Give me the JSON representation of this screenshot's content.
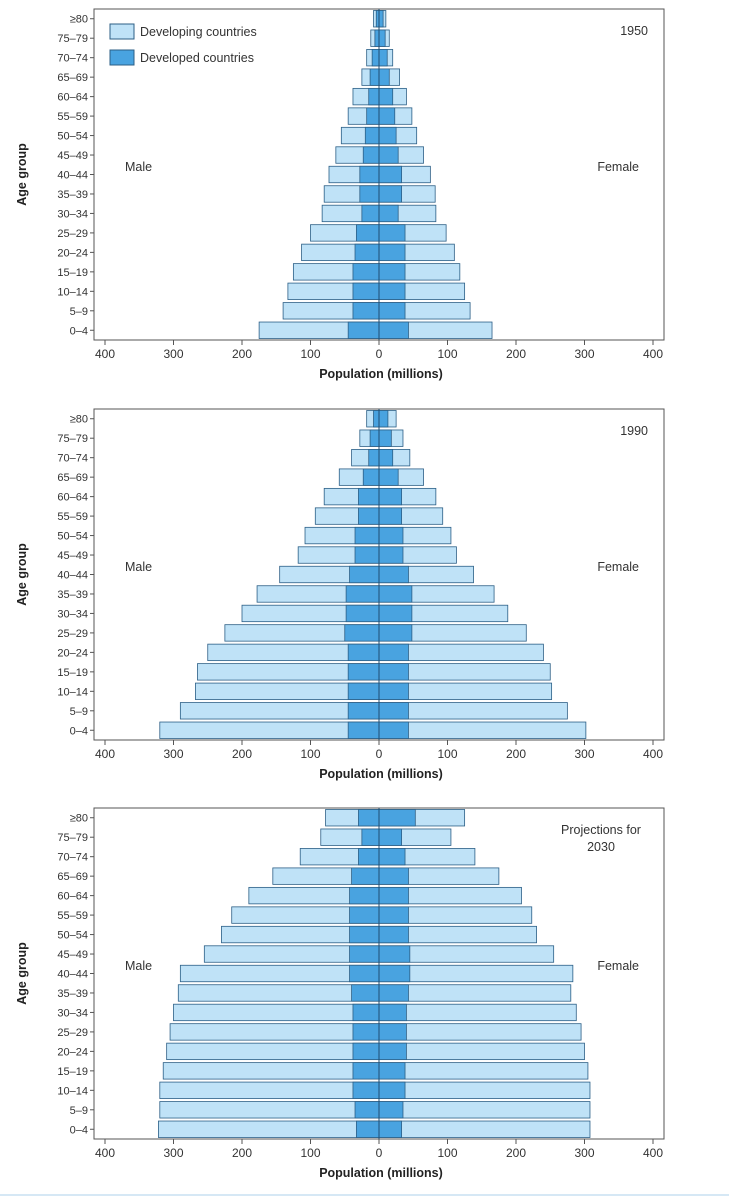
{
  "chart_data": [
    {
      "type": "bar",
      "annotation": "1950",
      "left_label": "Male",
      "right_label": "Female",
      "ylabel": "Age group",
      "xlabel": "Population (millions)",
      "xlim": [
        -400,
        400
      ],
      "x_ticks": [
        -400,
        -300,
        -200,
        -100,
        0,
        100,
        200,
        300,
        400
      ],
      "x_tick_labels": [
        "400",
        "300",
        "200",
        "100",
        "0",
        "100",
        "200",
        "300",
        "400"
      ],
      "categories": [
        "0–4",
        "5–9",
        "10–14",
        "15–19",
        "20–24",
        "25–29",
        "30–34",
        "35–39",
        "40–44",
        "45–49",
        "50–54",
        "55–59",
        "60–64",
        "65–69",
        "70–74",
        "75–79",
        "≥80"
      ],
      "legend": [
        {
          "label": "Developing countries",
          "color": "#bfe2f7"
        },
        {
          "label": "Developed countries",
          "color": "#49a3e0"
        }
      ],
      "series": [
        {
          "name": "Developing countries",
          "side": "Male",
          "values": [
            175,
            140,
            133,
            125,
            113,
            100,
            83,
            80,
            73,
            63,
            55,
            45,
            38,
            25,
            18,
            12,
            8
          ]
        },
        {
          "name": "Developing countries",
          "side": "Female",
          "values": [
            165,
            133,
            125,
            118,
            110,
            98,
            83,
            82,
            75,
            65,
            55,
            48,
            40,
            30,
            20,
            15,
            10
          ]
        },
        {
          "name": "Developed countries",
          "side": "Male",
          "values": [
            45,
            38,
            38,
            38,
            35,
            33,
            25,
            28,
            28,
            23,
            20,
            18,
            15,
            13,
            10,
            6,
            4
          ]
        },
        {
          "name": "Developed countries",
          "side": "Female",
          "values": [
            43,
            38,
            38,
            38,
            38,
            38,
            28,
            33,
            33,
            28,
            25,
            23,
            20,
            15,
            12,
            9,
            6
          ]
        }
      ]
    },
    {
      "type": "bar",
      "annotation": "1990",
      "left_label": "Male",
      "right_label": "Female",
      "ylabel": "Age group",
      "xlabel": "Population (millions)",
      "xlim": [
        -400,
        400
      ],
      "x_ticks": [
        -400,
        -300,
        -200,
        -100,
        0,
        100,
        200,
        300,
        400
      ],
      "x_tick_labels": [
        "400",
        "300",
        "200",
        "100",
        "0",
        "100",
        "200",
        "300",
        "400"
      ],
      "categories": [
        "0–4",
        "5–9",
        "10–14",
        "15–19",
        "20–24",
        "25–29",
        "30–34",
        "35–39",
        "40–44",
        "45–49",
        "50–54",
        "55–59",
        "60–64",
        "65–69",
        "70–74",
        "75–79",
        "≥80"
      ],
      "series": [
        {
          "name": "Developing countries",
          "side": "Male",
          "values": [
            320,
            290,
            268,
            265,
            250,
            225,
            200,
            178,
            145,
            118,
            108,
            93,
            80,
            58,
            40,
            28,
            18
          ]
        },
        {
          "name": "Developing countries",
          "side": "Female",
          "values": [
            302,
            275,
            252,
            250,
            240,
            215,
            188,
            168,
            138,
            113,
            105,
            93,
            83,
            65,
            45,
            35,
            25
          ]
        },
        {
          "name": "Developed countries",
          "side": "Male",
          "values": [
            45,
            45,
            45,
            45,
            45,
            50,
            48,
            48,
            43,
            35,
            35,
            30,
            30,
            23,
            15,
            13,
            8
          ]
        },
        {
          "name": "Developed countries",
          "side": "Female",
          "values": [
            43,
            43,
            43,
            43,
            43,
            48,
            48,
            48,
            43,
            35,
            35,
            33,
            33,
            28,
            20,
            18,
            13
          ]
        }
      ]
    },
    {
      "type": "bar",
      "annotation": "Projections for\n2030",
      "left_label": "Male",
      "right_label": "Female",
      "ylabel": "Age group",
      "xlabel": "Population (millions)",
      "xlim": [
        -400,
        400
      ],
      "x_ticks": [
        -400,
        -300,
        -200,
        -100,
        0,
        100,
        200,
        300,
        400
      ],
      "x_tick_labels": [
        "400",
        "300",
        "200",
        "100",
        "0",
        "100",
        "200",
        "300",
        "400"
      ],
      "categories": [
        "0–4",
        "5–9",
        "10–14",
        "15–19",
        "20–24",
        "25–29",
        "30–34",
        "35–39",
        "40–44",
        "45–49",
        "50–54",
        "55–59",
        "60–64",
        "65–69",
        "70–74",
        "75–79",
        "≥80"
      ],
      "series": [
        {
          "name": "Developing countries",
          "side": "Male",
          "values": [
            322,
            320,
            320,
            315,
            310,
            305,
            300,
            293,
            290,
            255,
            230,
            215,
            190,
            155,
            115,
            85,
            78
          ]
        },
        {
          "name": "Developing countries",
          "side": "Female",
          "values": [
            308,
            308,
            308,
            305,
            300,
            295,
            288,
            280,
            283,
            255,
            230,
            223,
            208,
            175,
            140,
            105,
            125
          ]
        },
        {
          "name": "Developed countries",
          "side": "Male",
          "values": [
            33,
            35,
            38,
            38,
            38,
            38,
            38,
            40,
            43,
            43,
            43,
            43,
            43,
            40,
            30,
            25,
            30
          ]
        },
        {
          "name": "Developed countries",
          "side": "Female",
          "values": [
            33,
            35,
            38,
            38,
            40,
            40,
            40,
            43,
            45,
            45,
            43,
            43,
            43,
            43,
            38,
            33,
            53
          ]
        }
      ]
    }
  ]
}
